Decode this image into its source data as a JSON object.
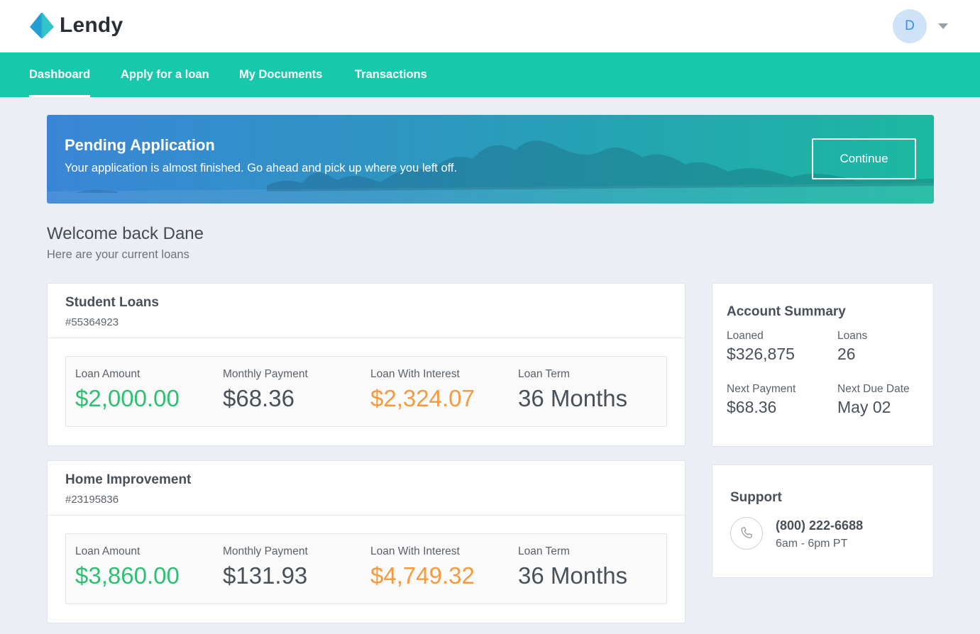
{
  "brand": {
    "name": "Lendy",
    "logo_icon": "lendy-logo-icon"
  },
  "user": {
    "initial": "D"
  },
  "nav": {
    "items": [
      {
        "label": "Dashboard",
        "active": true
      },
      {
        "label": "Apply for a loan",
        "active": false
      },
      {
        "label": "My Documents",
        "active": false
      },
      {
        "label": "Transactions",
        "active": false
      }
    ]
  },
  "banner": {
    "title": "Pending Application",
    "text": "Your application is almost finished. Go ahead and pick up where you left off.",
    "button_label": "Continue"
  },
  "welcome": {
    "title": "Welcome back Dane",
    "subtitle": "Here are your current loans"
  },
  "loans": [
    {
      "title": "Student Loans",
      "id": "#55364923",
      "stats": [
        {
          "label": "Loan Amount",
          "value": "$2,000.00"
        },
        {
          "label": "Monthly Payment",
          "value": "$68.36"
        },
        {
          "label": "Loan With Interest",
          "value": "$2,324.07"
        },
        {
          "label": "Loan Term",
          "value": "36 Months"
        }
      ]
    },
    {
      "title": "Home Improvement",
      "id": "#23195836",
      "stats": [
        {
          "label": "Loan Amount",
          "value": "$3,860.00"
        },
        {
          "label": "Monthly Payment",
          "value": "$131.93"
        },
        {
          "label": "Loan With Interest",
          "value": "$4,749.32"
        },
        {
          "label": "Loan Term",
          "value": "36 Months"
        }
      ]
    }
  ],
  "summary": {
    "title": "Account Summary",
    "loaned_label": "Loaned",
    "loaned_value": "$326,875",
    "loans_label": "Loans",
    "loans_value": "26",
    "next_payment_label": "Next Payment",
    "next_payment_value": "$68.36",
    "next_due_label": "Next Due Date",
    "next_due_value": "May 02"
  },
  "support": {
    "title": "Support",
    "phone": "(800) 222-6688",
    "hours": "6am - 6pm PT",
    "icon": "phone-icon"
  },
  "colors": {
    "nav": "#17c8aa",
    "green": "#2fbf72",
    "orange": "#f59a3e",
    "background": "#ebeef5"
  }
}
